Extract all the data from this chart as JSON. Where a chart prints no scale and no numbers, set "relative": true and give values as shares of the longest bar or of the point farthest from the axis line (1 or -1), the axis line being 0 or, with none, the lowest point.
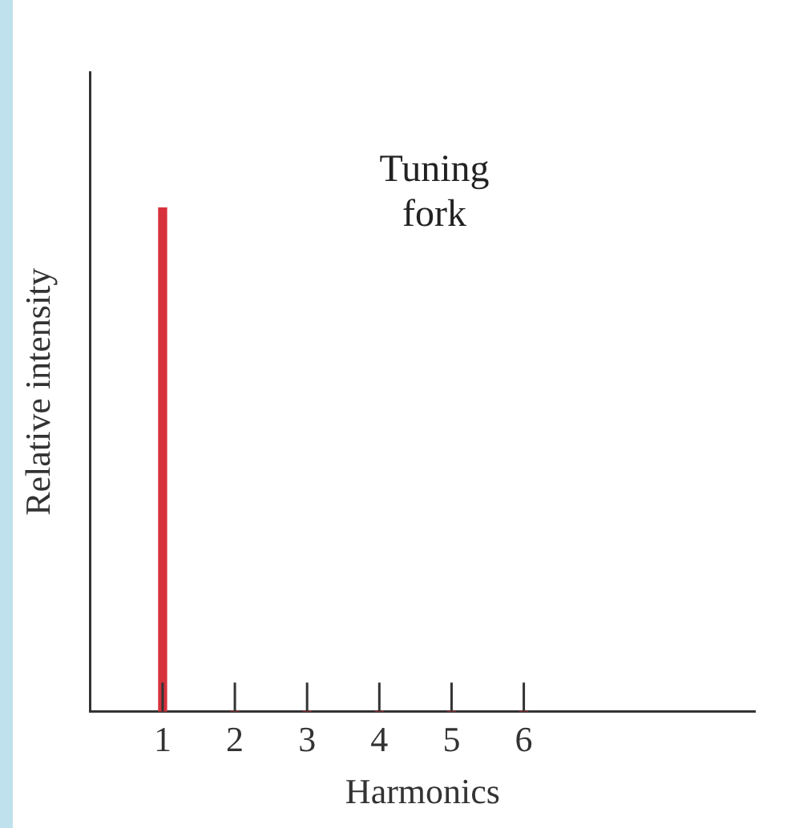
{
  "chart_data": {
    "type": "bar",
    "xlabel": "Harmonics",
    "ylabel": "Relative intensity",
    "annotations": [
      "Tuning fork"
    ],
    "x": [
      1,
      2,
      3,
      4,
      5,
      6
    ],
    "values": [
      1,
      0,
      0,
      0,
      0,
      0
    ],
    "color": "#d8323c",
    "relative": true,
    "xlim": [
      0,
      9.2
    ],
    "xticks": [
      1,
      2,
      3,
      4,
      5,
      6
    ],
    "tick_labels": "x",
    "grid": false,
    "legend": false
  }
}
